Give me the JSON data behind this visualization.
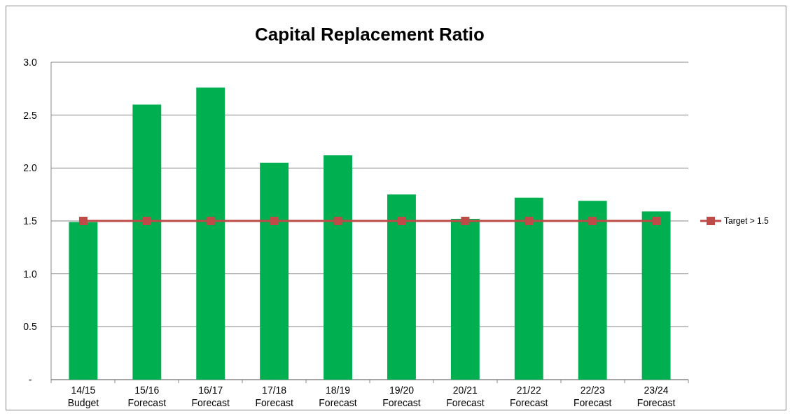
{
  "chart_data": {
    "type": "bar",
    "title": "Capital Replacement Ratio",
    "categories": [
      "14/15\nBudget",
      "15/16\nForecast",
      "16/17\nForecast",
      "17/18\nForecast",
      "18/19\nForecast",
      "19/20\nForecast",
      "20/21\nForecast",
      "21/22\nForecast",
      "22/23\nForecast",
      "23/24\nForecast"
    ],
    "series": [
      {
        "color": "#00b050",
        "values": [
          1.49,
          2.6,
          2.76,
          2.05,
          2.12,
          1.75,
          1.52,
          1.72,
          1.69,
          1.59
        ]
      },
      {
        "type": "line",
        "name": "Target > 1.5",
        "color": "#be4b48",
        "marker": "square",
        "values": [
          1.5,
          1.5,
          1.5,
          1.5,
          1.5,
          1.5,
          1.5,
          1.5,
          1.5,
          1.5
        ]
      }
    ],
    "ylim": [
      0,
      3
    ],
    "yticks": [
      {
        "value": 0,
        "label": "-"
      },
      0.5,
      {
        "value": 1,
        "label": "1.0"
      },
      1.5,
      {
        "value": 2,
        "label": "2.0"
      },
      2.5,
      {
        "value": 3,
        "label": "3.0"
      }
    ],
    "grid": "y",
    "legend": "right"
  }
}
